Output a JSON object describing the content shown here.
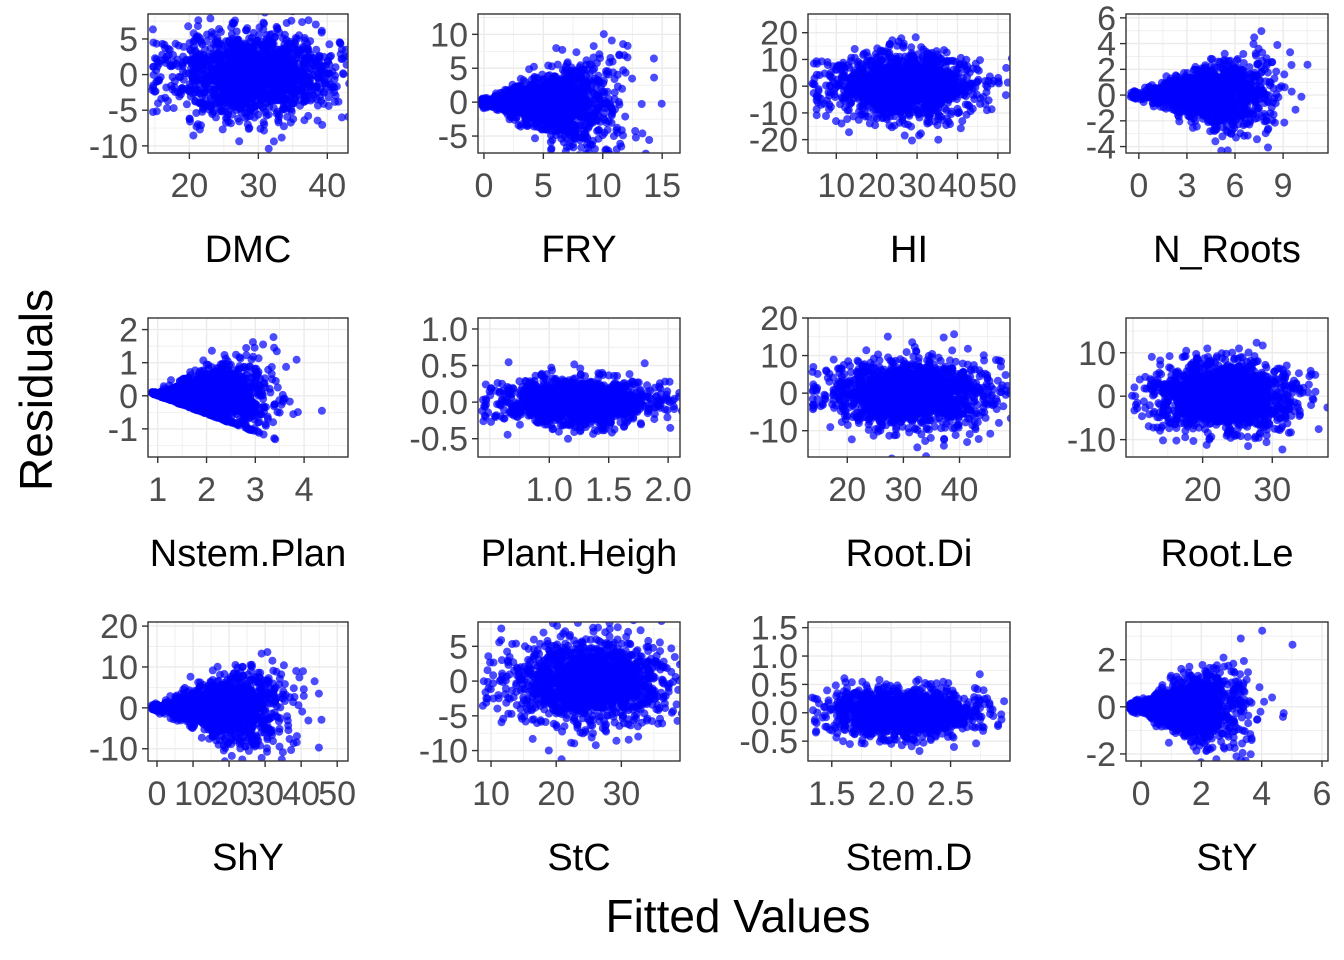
{
  "figure": {
    "xlabel": "Fitted Values",
    "ylabel": "Residuals"
  },
  "colors": {
    "points": "#0000ff",
    "panel_border": "#333333",
    "grid": "#ebebeb",
    "tick_text": "#4d4d4d"
  },
  "chart_data": [
    {
      "type": "scatter",
      "label": "DMC",
      "xlim": [
        14,
        43
      ],
      "ylim": [
        -11,
        8.5
      ],
      "xticks": [
        20,
        30,
        40
      ],
      "yticks": [
        -10,
        -5,
        0,
        5
      ],
      "x_center": 29,
      "x_spread": 6,
      "y_spread": 3,
      "n_points": 1500,
      "shape": "blob",
      "seed": 11
    },
    {
      "type": "scatter",
      "label": "FRY",
      "xlim": [
        -0.5,
        16.5
      ],
      "ylim": [
        -7.5,
        13
      ],
      "xticks": [
        0,
        5,
        10,
        15
      ],
      "yticks": [
        -5,
        0,
        5,
        10
      ],
      "x_center": 5,
      "x_spread": 3,
      "y_spread": 2.5,
      "n_points": 1500,
      "shape": "fan",
      "seed": 22
    },
    {
      "type": "scatter",
      "label": "HI",
      "xlim": [
        3,
        53
      ],
      "ylim": [
        -25,
        27
      ],
      "xticks": [
        10,
        20,
        30,
        40,
        50
      ],
      "yticks": [
        -20,
        -10,
        0,
        10,
        20
      ],
      "x_center": 27,
      "x_spread": 9,
      "y_spread": 6,
      "n_points": 1500,
      "shape": "blob",
      "seed": 33
    },
    {
      "type": "scatter",
      "label": "N_Roots",
      "xlim": [
        -0.8,
        11.8
      ],
      "ylim": [
        -4.5,
        6.3
      ],
      "xticks": [
        0,
        3,
        6,
        9
      ],
      "yticks": [
        -4,
        -2,
        0,
        2,
        4,
        6
      ],
      "x_center": 4,
      "x_spread": 2,
      "y_spread": 1.2,
      "n_points": 1500,
      "shape": "fan",
      "seed": 44
    },
    {
      "type": "scatter",
      "label": "Nstem.Plan",
      "xlim": [
        0.8,
        4.9
      ],
      "ylim": [
        -1.85,
        2.35
      ],
      "xticks": [
        1,
        2,
        3,
        4
      ],
      "yticks": [
        -1,
        0,
        1,
        2
      ],
      "x_center": 2,
      "x_spread": 0.6,
      "y_spread": 0.45,
      "n_points": 1500,
      "shape": "wedge",
      "seed": 55
    },
    {
      "type": "scatter",
      "label": "Plant.Heigh",
      "xlim": [
        0.4,
        2.1
      ],
      "ylim": [
        -0.75,
        1.15
      ],
      "xticks": [
        1.0,
        1.5,
        2.0
      ],
      "yticks": [
        -0.5,
        0.0,
        0.5,
        1.0
      ],
      "tick_decimals": 1,
      "x_center": 1.25,
      "x_spread": 0.3,
      "y_spread": 0.15,
      "n_points": 1500,
      "shape": "blob",
      "seed": 66
    },
    {
      "type": "scatter",
      "label": "Root.Di",
      "xlim": [
        13,
        49
      ],
      "ylim": [
        -17,
        20
      ],
      "xticks": [
        20,
        30,
        40
      ],
      "yticks": [
        -10,
        0,
        10,
        20
      ],
      "x_center": 31,
      "x_spread": 7,
      "y_spread": 4.5,
      "n_points": 1500,
      "shape": "blob",
      "seed": 77
    },
    {
      "type": "scatter",
      "label": "Root.Le",
      "xlim": [
        9,
        38
      ],
      "ylim": [
        -14,
        18
      ],
      "xticks": [
        20,
        30
      ],
      "yticks": [
        -10,
        0,
        10
      ],
      "x_center": 23,
      "x_spread": 5,
      "y_spread": 4,
      "n_points": 1500,
      "shape": "blob",
      "seed": 88
    },
    {
      "type": "scatter",
      "label": "ShY",
      "xlim": [
        -2.5,
        53
      ],
      "ylim": [
        -13,
        21
      ],
      "xticks": [
        0,
        10,
        20,
        30,
        40,
        50
      ],
      "yticks": [
        -10,
        0,
        10,
        20
      ],
      "x_center": 17,
      "x_spread": 9,
      "y_spread": 4,
      "n_points": 1500,
      "shape": "fan",
      "seed": 99
    },
    {
      "type": "scatter",
      "label": "StC",
      "xlim": [
        8,
        39
      ],
      "ylim": [
        -11.5,
        8.5
      ],
      "xticks": [
        10,
        20,
        30
      ],
      "yticks": [
        -10,
        -5,
        0,
        5
      ],
      "x_center": 25,
      "x_spread": 6,
      "y_spread": 3,
      "n_points": 1500,
      "shape": "blob",
      "seed": 111
    },
    {
      "type": "scatter",
      "label": "Stem.D",
      "xlim": [
        1.3,
        3.0
      ],
      "ylim": [
        -0.85,
        1.6
      ],
      "xticks": [
        1.5,
        2.0,
        2.5
      ],
      "yticks": [
        -0.5,
        0.0,
        0.5,
        1.0,
        1.5
      ],
      "tick_decimals": 1,
      "x_center": 2.1,
      "x_spread": 0.3,
      "y_spread": 0.2,
      "n_points": 1500,
      "shape": "blob",
      "seed": 122
    },
    {
      "type": "scatter",
      "label": "StY",
      "xlim": [
        -0.5,
        6.2
      ],
      "ylim": [
        -2.3,
        3.6
      ],
      "xticks": [
        0,
        2,
        4,
        6
      ],
      "yticks": [
        -2,
        0,
        2
      ],
      "x_center": 1.3,
      "x_spread": 1.0,
      "y_spread": 0.6,
      "n_points": 1500,
      "shape": "fan",
      "seed": 133
    }
  ]
}
